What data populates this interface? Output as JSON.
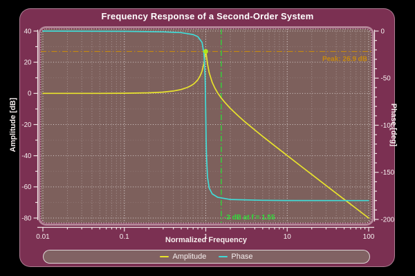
{
  "title": "Frequency Response of a Second-Order System",
  "axes": {
    "x": {
      "label": "Normalized Frequency",
      "scale": "log",
      "min": 0.01,
      "max": 100,
      "major_ticks": [
        0.01,
        0.1,
        1,
        10,
        100
      ],
      "tick_labels": [
        "0.01",
        "0.1",
        "1",
        "10",
        "100"
      ]
    },
    "y_left": {
      "label": "Amplitude [dB]",
      "min": -80,
      "max": 40,
      "major_ticks": [
        40,
        20,
        0,
        -20,
        -40,
        -60,
        -80
      ],
      "minor_ticks": [
        30,
        10,
        -10,
        -30,
        -50,
        -70
      ],
      "tick_labels": [
        "40",
        "20",
        "0",
        "-20",
        "-40",
        "-60",
        "-80"
      ]
    },
    "y_right": {
      "label": "Phase [deg]",
      "min": -200,
      "max": 0,
      "major_ticks": [
        0,
        -50,
        -100,
        -150,
        -200
      ],
      "minor_step": 10,
      "tick_labels": [
        "0",
        "-50",
        "-100",
        "-150",
        "-200"
      ]
    }
  },
  "annotations": {
    "peak": {
      "label": "Peak: 26.9 dB",
      "value_db": 26.9,
      "freq": 1.0,
      "color": "#c6890f",
      "line_style": "dash-dot",
      "marker_color": "#b2e619"
    },
    "cutoff": {
      "label": "-3 dB at f = 1.55",
      "freq": 1.55,
      "value_db": -3,
      "color": "#2edd38",
      "line_style": "dash-dot"
    }
  },
  "legend": {
    "items": [
      {
        "label": "Amplitude",
        "color": "#e9e42c"
      },
      {
        "label": "Phase",
        "color": "#40dcd8"
      }
    ],
    "position": "bottom"
  },
  "colors": {
    "figure_bg": "#7b3052",
    "plot_bg": "#7d605c",
    "grid": "#ffffff",
    "axis": "#f0e6e6",
    "tick_label": "#f7f1f1",
    "amplitude_line": "#e9e42c",
    "phase_line": "#40dcd8"
  },
  "chart_data": {
    "type": "line",
    "title": "Frequency Response of a Second-Order System",
    "xlabel": "Normalized Frequency",
    "x_scale": "log",
    "xlim": [
      0.01,
      100
    ],
    "ylabel_left": "Amplitude [dB]",
    "ylim_left": [
      -80,
      40
    ],
    "ylabel_right": "Phase [deg]",
    "ylim_right": [
      -200,
      0
    ],
    "grid": true,
    "legend_position": "bottom",
    "series": [
      {
        "name": "Amplitude",
        "axis": "left",
        "color": "#e9e42c",
        "points": [
          [
            0.01,
            0.0
          ],
          [
            0.05,
            0.02
          ],
          [
            0.1,
            0.09
          ],
          [
            0.2,
            0.35
          ],
          [
            0.3,
            0.82
          ],
          [
            0.4,
            1.5
          ],
          [
            0.5,
            2.5
          ],
          [
            0.6,
            3.9
          ],
          [
            0.65,
            4.8
          ],
          [
            0.7,
            5.8
          ],
          [
            0.75,
            7.2
          ],
          [
            0.8,
            8.8
          ],
          [
            0.85,
            11.1
          ],
          [
            0.9,
            14.2
          ],
          [
            0.95,
            19.5
          ],
          [
            0.98,
            24.5
          ],
          [
            1.0,
            26.9
          ],
          [
            1.02,
            24.2
          ],
          [
            1.05,
            18.9
          ],
          [
            1.1,
            13.3
          ],
          [
            1.2,
            7.1
          ],
          [
            1.3,
            3.2
          ],
          [
            1.4,
            0.3
          ],
          [
            1.55,
            -3.0
          ],
          [
            1.7,
            -5.5
          ],
          [
            2.0,
            -9.6
          ],
          [
            2.5,
            -14.4
          ],
          [
            3.0,
            -18.1
          ],
          [
            4.0,
            -23.5
          ],
          [
            5.0,
            -27.6
          ],
          [
            7.0,
            -33.6
          ],
          [
            10.0,
            -39.9
          ],
          [
            15.0,
            -47.0
          ],
          [
            20.0,
            -52.0
          ],
          [
            30.0,
            -59.1
          ],
          [
            50.0,
            -68.0
          ],
          [
            70.0,
            -73.8
          ],
          [
            100.0,
            -80.0
          ]
        ]
      },
      {
        "name": "Phase",
        "axis": "right",
        "color": "#40dcd8",
        "points": [
          [
            0.01,
            0.0
          ],
          [
            0.1,
            -0.3
          ],
          [
            0.3,
            -0.9
          ],
          [
            0.5,
            -1.7
          ],
          [
            0.7,
            -3.7
          ],
          [
            0.8,
            -5.9
          ],
          [
            0.9,
            -12.1
          ],
          [
            0.95,
            -23.9
          ],
          [
            0.98,
            -48.3
          ],
          [
            0.99,
            -66.1
          ],
          [
            1.0,
            -90.0
          ],
          [
            1.01,
            -114.1
          ],
          [
            1.02,
            -131.1
          ],
          [
            1.05,
            -155.0
          ],
          [
            1.1,
            -166.6
          ],
          [
            1.2,
            -172.9
          ],
          [
            1.4,
            -176.5
          ],
          [
            2.0,
            -178.8
          ],
          [
            5.0,
            -179.7
          ],
          [
            10.0,
            -179.9
          ],
          [
            100.0,
            -180.0
          ]
        ]
      }
    ]
  }
}
